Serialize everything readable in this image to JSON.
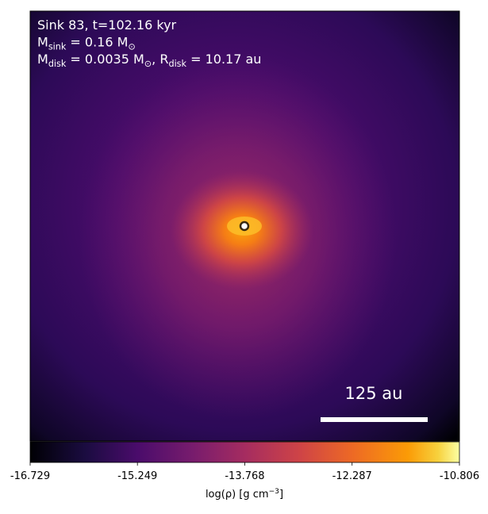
{
  "chart_data": {
    "type": "density_map",
    "annotation_lines": [
      [
        {
          "text": "Sink 83, t=102.16 kyr"
        }
      ],
      [
        {
          "text": "M"
        },
        {
          "sub": "sink"
        },
        {
          "text": " = 0.16 M"
        },
        {
          "sub": "⊙"
        }
      ],
      [
        {
          "text": "M"
        },
        {
          "sub": "disk"
        },
        {
          "text": " = 0.0035 M"
        },
        {
          "sub": "⊙"
        },
        {
          "text": ", R"
        },
        {
          "sub": "disk"
        },
        {
          "text": " = 10.17 au"
        }
      ]
    ],
    "scale_bar_label": "125 au",
    "colorbar": {
      "colormap": "inferno",
      "lim": [
        -16.729,
        -10.806
      ],
      "ticks": [
        -16.729,
        -15.249,
        -13.768,
        -12.287,
        -10.806
      ],
      "label": [
        {
          "text": "log(ρ) [g cm"
        },
        {
          "sup": "−3"
        },
        {
          "text": "]"
        }
      ]
    }
  }
}
